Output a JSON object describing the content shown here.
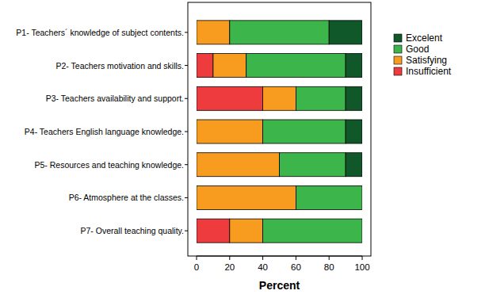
{
  "chart_data": {
    "type": "bar",
    "orientation": "horizontal",
    "stacked": true,
    "x_label": "Percent",
    "categories": [
      "P1- Teachers´ knowledge of subject contents.",
      "P2- Teachers motivation and skills.",
      "P3- Teachers availability and support.",
      "P4- Teachers English language knowledge.",
      "P5- Resources and teaching knowledge.",
      "P6- Atmosphere at the classes.",
      "P7- Overall teaching quality."
    ],
    "series": [
      {
        "name": "Excelent",
        "color": "#10582a",
        "values": [
          20,
          10,
          10,
          10,
          10,
          0,
          0
        ]
      },
      {
        "name": "Good",
        "color": "#3cb64a",
        "values": [
          60,
          60,
          30,
          50,
          40,
          40,
          60
        ]
      },
      {
        "name": "Satisfying",
        "color": "#f89c1f",
        "values": [
          20,
          20,
          20,
          40,
          50,
          60,
          20
        ]
      },
      {
        "name": "Insufficient",
        "color": "#ee3b3e",
        "values": [
          0,
          10,
          40,
          0,
          0,
          0,
          20
        ]
      }
    ],
    "xlim": [
      0,
      100
    ],
    "xticks": [
      0,
      20,
      40,
      60,
      80,
      100
    ],
    "legend": "right",
    "grid": false
  }
}
